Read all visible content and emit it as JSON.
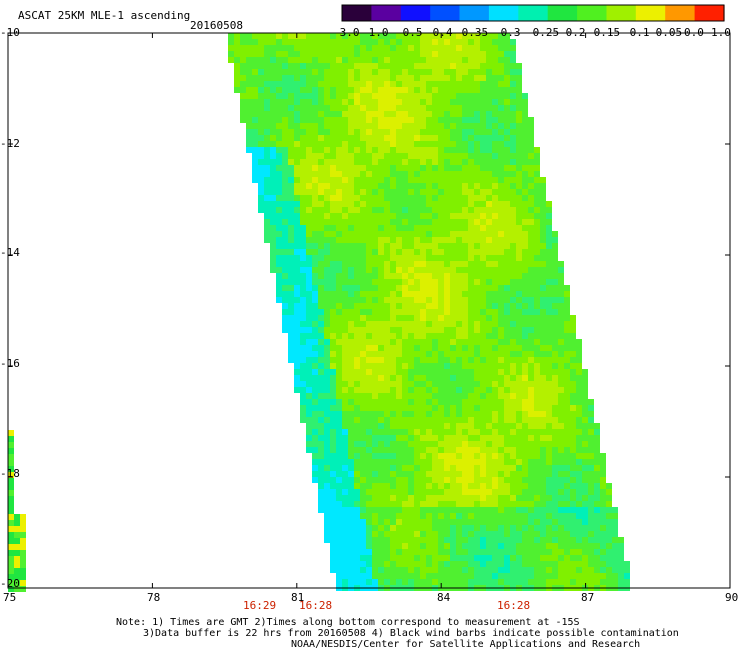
{
  "header": {
    "title": "ASCAT 25KM MLE-1 ascending",
    "date": "20160508"
  },
  "colorbar": {
    "labels": [
      "-3.0",
      "-1.0",
      "-0.5",
      "-0.4",
      "-0.35",
      "-0.3",
      "-0.25",
      "-0.2",
      "-0.15",
      "-0.1",
      "-0.05",
      "0.0",
      "1.0"
    ],
    "colors": [
      "#2a003a",
      "#5a00a0",
      "#1010ff",
      "#0050ff",
      "#0098ff",
      "#00e0ff",
      "#00f0b0",
      "#20e640",
      "#50f020",
      "#a0f000",
      "#ecf000",
      "#ff9800",
      "#ff2000"
    ]
  },
  "axes": {
    "lon_ticks": [
      "75",
      "78",
      "81",
      "84",
      "87",
      "90"
    ],
    "lat_ticks": [
      "-10",
      "-12",
      "-14",
      "-16",
      "-18",
      "-20"
    ]
  },
  "times": [
    "16:29",
    "16:28",
    "16:28"
  ],
  "notes": {
    "line1": "Note: 1) Times are GMT 2)Times along bottom correspond to measurement at -15S",
    "line2": "3)Data buffer is 22 hrs from 20160508 4) Black wind barbs indicate possible contamination",
    "line3": "NOAA/NESDIS/Center for Satellite Applications and Research"
  }
}
